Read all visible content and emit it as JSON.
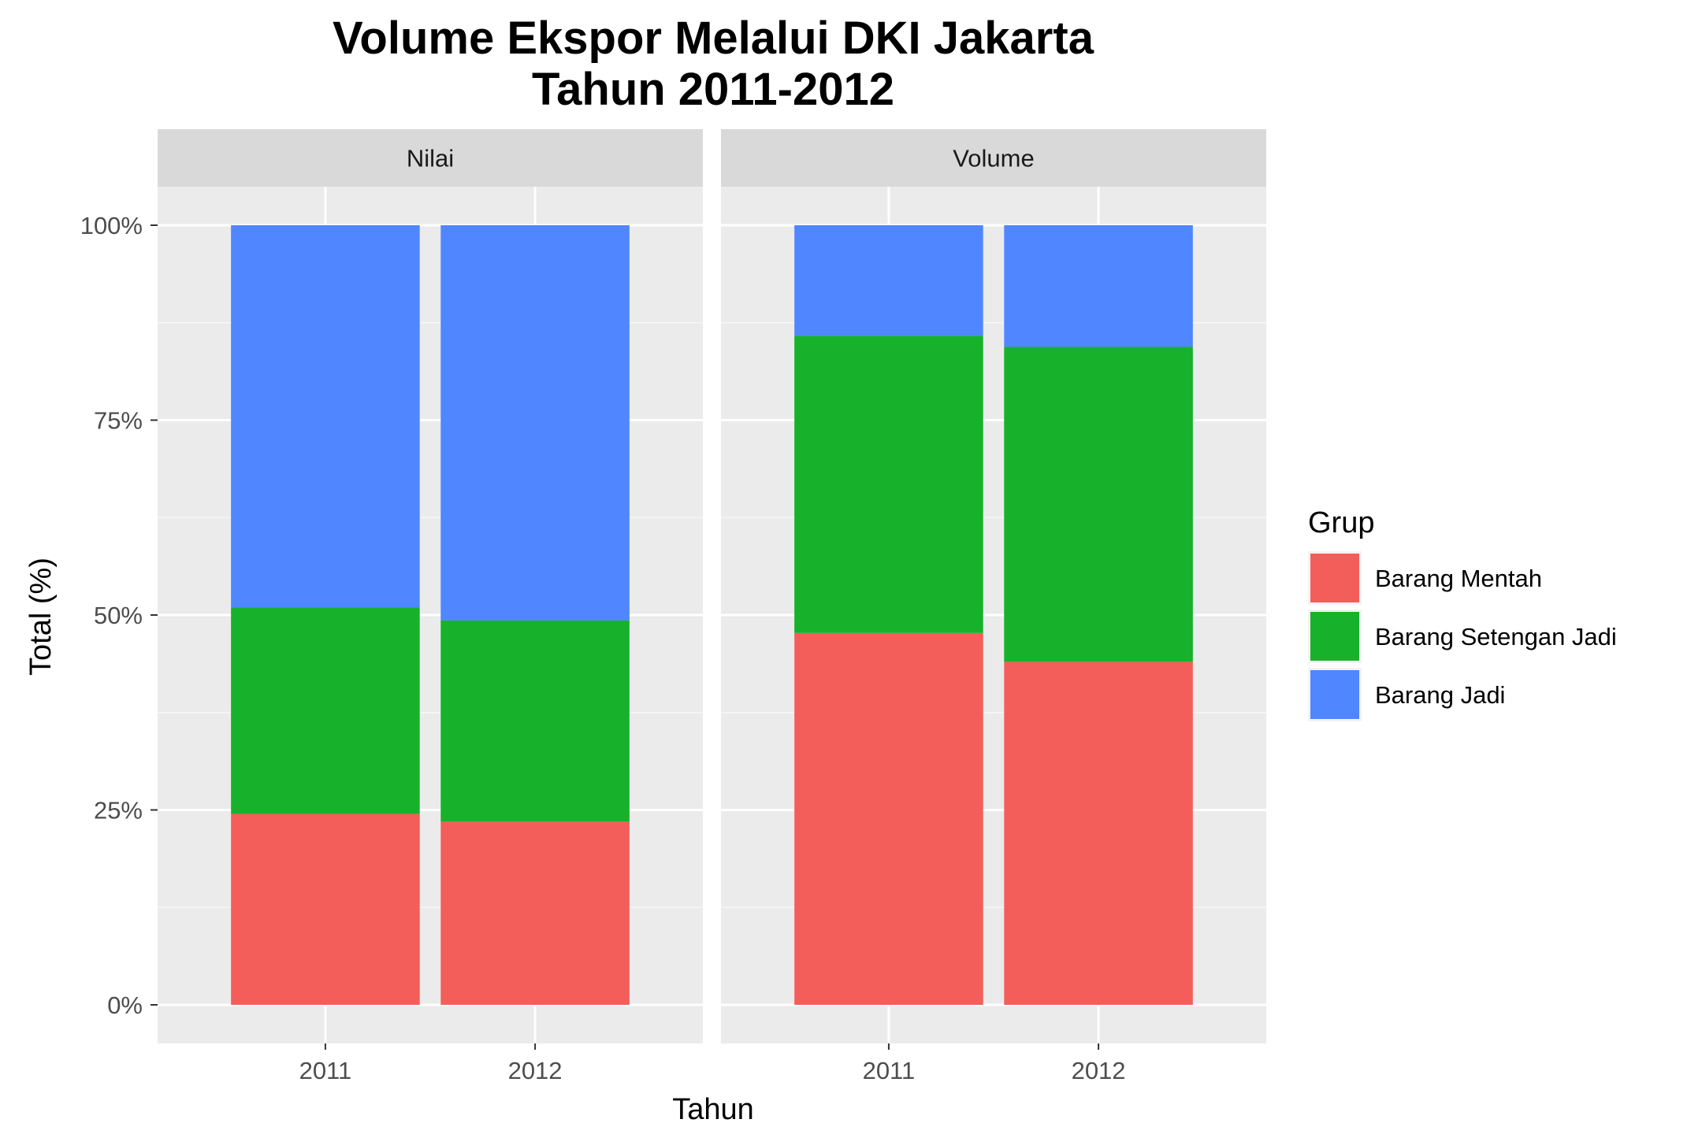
{
  "chart_data": {
    "type": "bar",
    "stacked": true,
    "title_lines": [
      "Volume Ekspor Melalui DKI Jakarta",
      "Tahun 2011-2012"
    ],
    "xlabel": "Tahun",
    "ylabel": "Total (%)",
    "ylim": [
      0,
      100
    ],
    "yticks": [
      0,
      25,
      50,
      75,
      100
    ],
    "ytick_labels": [
      "0%",
      "25%",
      "50%",
      "75%",
      "100%"
    ],
    "categories": [
      "2011",
      "2012"
    ],
    "legend": {
      "title": "Grup",
      "position": "right",
      "items": [
        {
          "name": "Barang Mentah",
          "color": "#F35E5A"
        },
        {
          "name": "Barang Setengan Jadi",
          "color": "#17B12B"
        },
        {
          "name": "Barang Jadi",
          "color": "#5086FF"
        }
      ]
    },
    "panels": [
      {
        "label": "Nilai",
        "series": [
          {
            "name": "Barang Mentah",
            "values": [
              24.5,
              23.5
            ]
          },
          {
            "name": "Barang Setengan Jadi",
            "values": [
              26.5,
              25.8
            ]
          },
          {
            "name": "Barang Jadi",
            "values": [
              49.0,
              50.7
            ]
          }
        ]
      },
      {
        "label": "Volume",
        "series": [
          {
            "name": "Barang Mentah",
            "values": [
              47.7,
              44.0
            ]
          },
          {
            "name": "Barang Setengan Jadi",
            "values": [
              38.1,
              40.4
            ]
          },
          {
            "name": "Barang Jadi",
            "values": [
              14.2,
              15.6
            ]
          }
        ]
      }
    ]
  }
}
